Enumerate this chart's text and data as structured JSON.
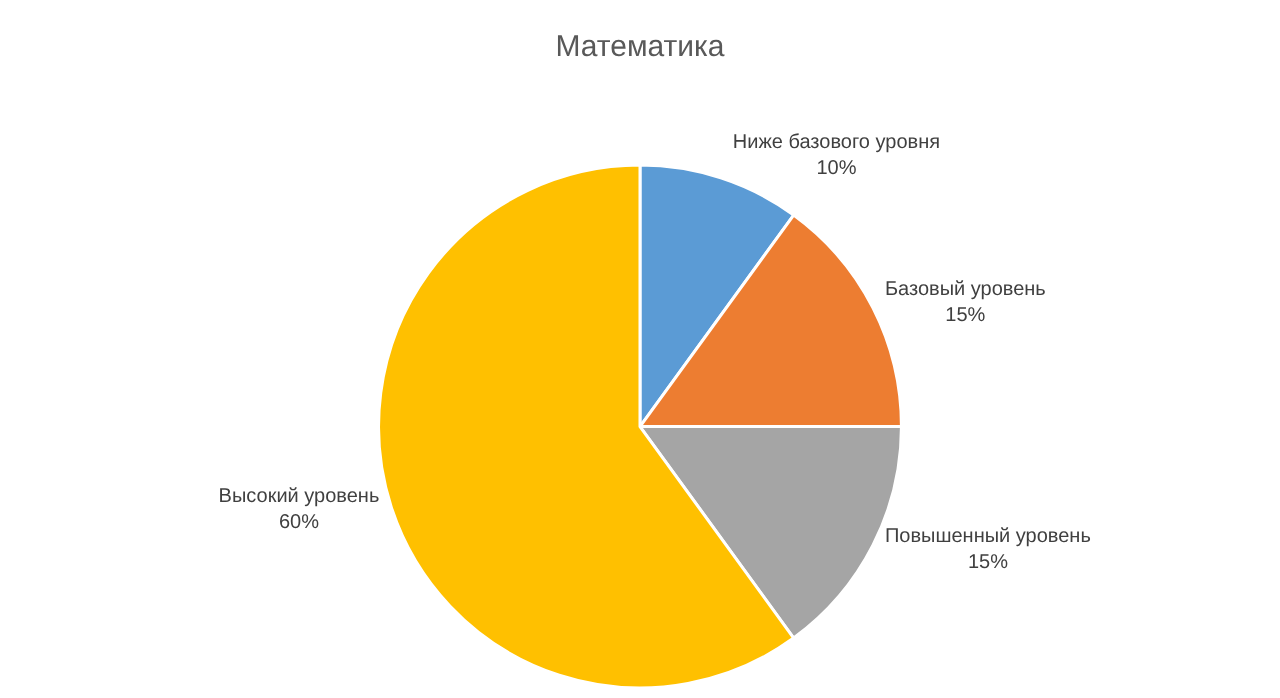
{
  "chart_data": {
    "type": "pie",
    "title": "Математика",
    "categories": [
      "Ниже базового уровня",
      "Базовый уровень",
      "Повышенный уровень",
      "Высокий уровень"
    ],
    "values": [
      10,
      15,
      15,
      60
    ],
    "value_labels": [
      "10%",
      "15%",
      "15%",
      "60%"
    ],
    "colors": [
      "#5b9bd5",
      "#ed7d31",
      "#a5a5a5",
      "#ffc000"
    ],
    "legend": false
  }
}
